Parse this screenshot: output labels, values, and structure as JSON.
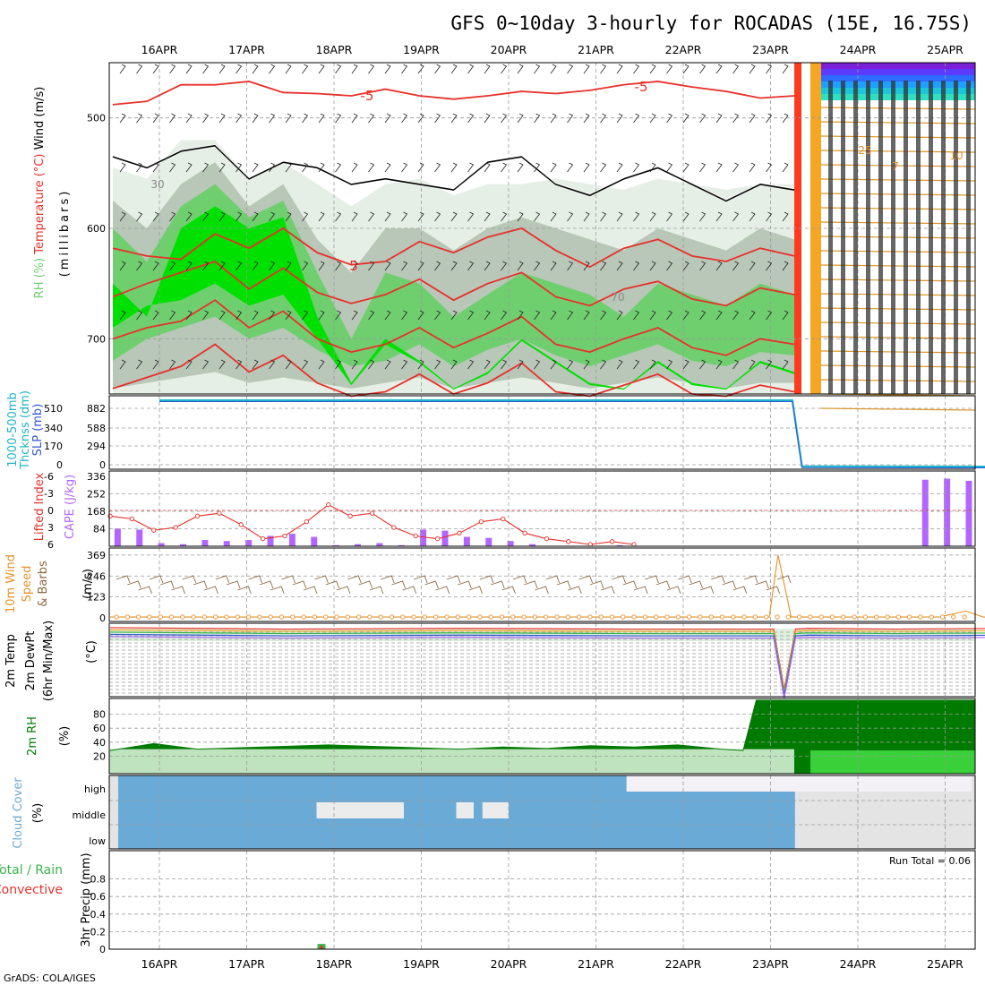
{
  "title": "GFS 0~10day 3-hourly for ROCADAS (15E, 16.75S)",
  "credit": "GrADS: COLA/IGES",
  "dates": [
    "16APR",
    "17APR",
    "18APR",
    "19APR",
    "20APR",
    "21APR",
    "22APR",
    "23APR",
    "24APR",
    "25APR"
  ],
  "colors": {
    "temperature": "#e8302a",
    "rh_dark": "#00e000",
    "rh_mid": "#6fcf6f",
    "rh_grey": "#b8c7b8",
    "rh_light": "#e6efe6",
    "thickness": "#1fb5c8",
    "slp": "#2f57d8",
    "cape": "#b266ff",
    "lifted_index": "#e8302a",
    "wind10m": "#e8902a",
    "barbs": "#8b6a40",
    "rh2m": "#007a00",
    "cloud": "#6aaad6",
    "cloud_clear": "#e4e4e4",
    "precip_total": "#39b54a",
    "precip_conv": "#e8302a"
  },
  "chart_data": [
    {
      "panel": "upper-air",
      "type": "heatmap",
      "ylabel_parts": [
        "RH (%)",
        "Temperature (°C)",
        "Wind (m/s)"
      ],
      "ylabel2": "(millibars)",
      "y_ticks": [
        500,
        600,
        700
      ],
      "ylim": [
        750,
        450
      ],
      "contour_labels": [
        "-5",
        "-5",
        "5",
        "30",
        "70",
        "25",
        "7",
        "10"
      ],
      "temperature_isotherms": [
        {
          "value": -5,
          "p": [
            488,
            485,
            470,
            470,
            467,
            477,
            478,
            480,
            474,
            480,
            483,
            480,
            476,
            478,
            475,
            470,
            467,
            472,
            476,
            482,
            480
          ]
        },
        {
          "value": 0,
          "p": [
            618,
            625,
            628,
            605,
            618,
            600,
            622,
            633,
            630,
            612,
            622,
            608,
            600,
            620,
            635,
            618,
            610,
            625,
            630,
            618,
            625
          ]
        },
        {
          "value": 5,
          "p": [
            662,
            650,
            640,
            630,
            655,
            636,
            658,
            668,
            660,
            646,
            665,
            650,
            640,
            662,
            670,
            655,
            648,
            664,
            670,
            654,
            660
          ]
        },
        {
          "value": 10,
          "p": [
            700,
            690,
            684,
            665,
            690,
            675,
            700,
            712,
            705,
            690,
            708,
            695,
            680,
            705,
            712,
            700,
            690,
            708,
            715,
            700,
            705
          ]
        },
        {
          "value": 15,
          "p": [
            745,
            735,
            725,
            705,
            730,
            715,
            740,
            752,
            748,
            732,
            750,
            740,
            722,
            748,
            752,
            742,
            732,
            750,
            752,
            742,
            748
          ]
        }
      ],
      "rh_bands": [
        {
          "level": "light",
          "top": [
            545,
            555,
            520,
            520,
            555,
            540,
            560,
            580,
            560,
            555,
            570,
            560,
            560,
            555,
            560,
            565,
            555,
            560,
            565,
            560,
            560
          ],
          "bot": [
            750,
            750,
            750,
            750,
            750,
            750,
            750,
            750,
            750,
            750,
            750,
            750,
            750,
            750,
            750,
            750,
            750,
            750,
            750,
            750,
            750
          ]
        },
        {
          "level": "grey",
          "top": [
            575,
            600,
            560,
            540,
            580,
            560,
            610,
            640,
            600,
            600,
            620,
            600,
            590,
            600,
            610,
            620,
            600,
            610,
            620,
            600,
            610
          ],
          "bot": [
            745,
            740,
            735,
            730,
            740,
            735,
            740,
            745,
            740,
            735,
            745,
            740,
            735,
            740,
            745,
            740,
            735,
            740,
            745,
            740,
            740
          ]
        },
        {
          "level": "mid",
          "top": [
            600,
            630,
            580,
            560,
            590,
            575,
            640,
            700,
            640,
            650,
            680,
            660,
            640,
            650,
            660,
            680,
            650,
            660,
            670,
            650,
            660
          ],
          "bot": [
            720,
            700,
            690,
            680,
            700,
            690,
            710,
            725,
            720,
            705,
            725,
            710,
            700,
            715,
            725,
            715,
            705,
            720,
            725,
            712,
            715
          ]
        },
        {
          "level": "dark",
          "top": [
            650,
            680,
            600,
            580,
            600,
            590,
            680,
            740,
            700,
            720,
            745,
            730,
            700,
            720,
            740,
            745,
            720,
            740,
            745,
            720,
            730
          ],
          "bot": [
            690,
            670,
            665,
            650,
            670,
            660,
            700,
            742,
            705,
            722,
            746,
            732,
            702,
            722,
            742,
            746,
            722,
            742,
            746,
            722,
            732
          ]
        }
      ],
      "rh90_contour_p": [
        535,
        545,
        530,
        525,
        555,
        540,
        545,
        560,
        555,
        560,
        565,
        540,
        535,
        560,
        570,
        555,
        545,
        560,
        575,
        560,
        565
      ]
    },
    {
      "panel": "thickness-slp",
      "type": "line",
      "ylabel_parts": [
        "1000-500mb",
        "Thcknss (dm)",
        "SLP (mb)"
      ],
      "thickness_ticks": [
        0,
        170,
        340,
        510
      ],
      "slp_ticks": [
        0,
        294,
        588,
        882
      ],
      "ylim": [
        0,
        1000
      ],
      "series": [
        {
          "name": "SLP",
          "x": [
            0,
            7.25,
            7.36,
            10.3
          ],
          "values": [
            915,
            915,
            15,
            10
          ]
        }
      ]
    },
    {
      "panel": "stability",
      "type": "bar",
      "ylabel_parts": [
        "Lifted Index",
        "CAPE (J/kg)"
      ],
      "li_ticks": [
        "-6",
        "-3",
        "0",
        "3",
        "6"
      ],
      "cape_ticks": [
        84,
        168,
        252,
        336
      ],
      "cape_ylim": [
        0,
        336
      ],
      "cape_x": [
        0.05,
        0.3,
        0.55,
        0.8,
        1.05,
        1.3,
        1.55,
        1.8,
        2.05,
        2.3,
        2.55,
        2.8,
        3.05,
        3.3,
        3.55,
        3.8,
        4.05,
        4.3,
        4.55,
        4.8,
        5.05,
        5.3,
        5.55,
        5.8,
        6.05,
        6.3,
        6.55,
        6.8,
        7.05,
        7.3,
        7.55,
        7.8,
        8.05,
        8.3,
        8.55,
        8.8,
        9.05,
        9.3,
        9.55,
        9.8,
        10.05,
        10.3
      ],
      "cape_values": [
        85,
        80,
        15,
        10,
        30,
        25,
        30,
        50,
        60,
        45,
        5,
        10,
        15,
        5,
        80,
        75,
        45,
        40,
        25,
        10,
        0,
        0,
        0,
        5,
        0,
        0,
        0,
        0,
        0,
        0,
        0,
        0,
        0,
        0,
        0,
        0,
        0,
        320,
        325,
        315,
        315,
        312
      ],
      "li_x": [
        0,
        0.25,
        0.5,
        0.75,
        1,
        1.25,
        1.5,
        1.75,
        2,
        2.25,
        2.5,
        2.75,
        3,
        3.25,
        3.5,
        3.75,
        4,
        4.25,
        4.5,
        4.75,
        5,
        5.25,
        5.5,
        5.75,
        6
      ],
      "li_values": [
        1,
        1.5,
        3.5,
        3,
        1,
        0.5,
        2.5,
        5,
        4.5,
        2,
        -1,
        1,
        0.5,
        3,
        4.5,
        5,
        4,
        2,
        1.5,
        4,
        5,
        5.5,
        6,
        5.5,
        6
      ],
      "li_zero_ref": 0
    },
    {
      "panel": "wind10m",
      "type": "line",
      "ylabel_parts": [
        "10m Wind",
        "Speed",
        "& Barbs",
        "(m/s)"
      ],
      "y_ticks": [
        0,
        123,
        246,
        369
      ],
      "ylim": [
        0,
        400
      ],
      "series": [
        {
          "name": "10m Wind Speed",
          "x": [
            0,
            1,
            2,
            3,
            4,
            5,
            6,
            7,
            7.5,
            7.55,
            7.65,
            7.8,
            8,
            9,
            9.5,
            9.8,
            10,
            10.3
          ],
          "values": [
            5,
            5,
            5,
            5,
            5,
            5,
            5,
            5,
            5,
            5,
            370,
            5,
            5,
            5,
            5,
            40,
            5,
            5
          ]
        }
      ]
    },
    {
      "panel": "temp2m",
      "type": "line",
      "ylabel_parts": [
        "2m Temp",
        "2m DewPt",
        "(6hr Min/Max)",
        "(°C)"
      ],
      "ylim": [
        0,
        1
      ],
      "series": [
        {
          "name": "2m Temp",
          "x": [
            0,
            2,
            4,
            6,
            7.6,
            7.72,
            7.85,
            8,
            9,
            10.3
          ],
          "values": [
            0.94,
            0.92,
            0.93,
            0.92,
            0.92,
            0.1,
            0.92,
            0.93,
            0.92,
            0.93
          ]
        }
      ]
    },
    {
      "panel": "rh2m",
      "type": "area",
      "ylabel_parts": [
        "2m RH",
        "(%)"
      ],
      "y_ticks": [
        20,
        40,
        60,
        80
      ],
      "ylim": [
        0,
        100
      ],
      "series": [
        {
          "name": "2m RH",
          "x": [
            0,
            0.5,
            1,
            1.5,
            2,
            2.5,
            3,
            3.5,
            4,
            4.5,
            5,
            5.5,
            6,
            6.5,
            7,
            7.25,
            7.4,
            7.6,
            8,
            9,
            10,
            10.3
          ],
          "values": [
            28,
            38,
            30,
            32,
            34,
            36,
            34,
            32,
            30,
            33,
            31,
            35,
            33,
            36,
            30,
            28,
            100,
            100,
            100,
            100,
            100,
            100
          ]
        }
      ]
    },
    {
      "panel": "cloud",
      "type": "heatmap",
      "ylabel_parts": [
        "Cloud Cover",
        "(%)"
      ],
      "y_categories": [
        "high",
        "middle",
        "low"
      ],
      "covered_until_day": 7.28
    },
    {
      "panel": "precip",
      "type": "bar",
      "ylabel_parts": [
        "3hr Precip (mm)",
        "Total / Rain",
        "Convective"
      ],
      "y_ticks": [
        "0",
        "0.2",
        "0.4",
        "0.6",
        "0.8"
      ],
      "ylim": [
        0,
        1
      ],
      "run_total_label": "Run Total = 0.06",
      "x": [
        2.2
      ],
      "values": [
        0.06
      ]
    }
  ]
}
